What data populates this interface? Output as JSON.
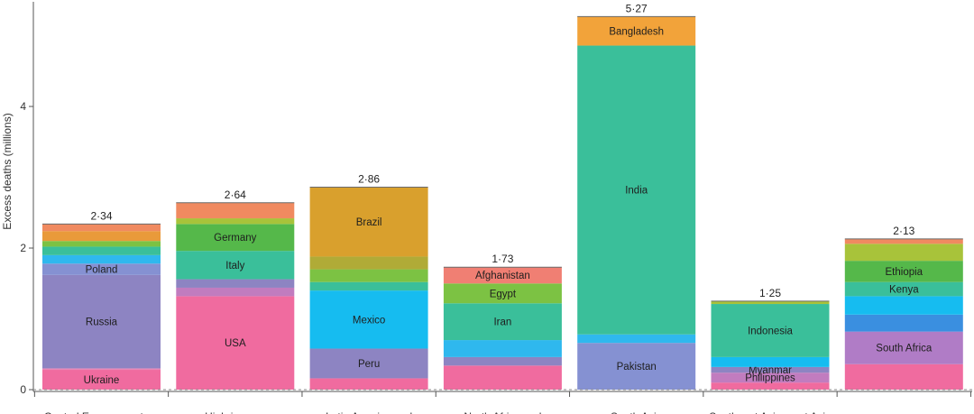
{
  "chart_data": {
    "type": "bar",
    "stacked": true,
    "ylabel": "Excess deaths (millions)",
    "ylim": [
      0,
      5.3
    ],
    "yticks": [
      {
        "v": 0,
        "label": "0"
      },
      {
        "v": 2,
        "label": "2"
      },
      {
        "v": 4,
        "label": "4"
      }
    ],
    "grid": false,
    "categories": [
      {
        "label": "Central Europe, eastern",
        "total": 2.34,
        "total_label": "2·34",
        "segments": [
          {
            "name": "Ukraine",
            "value": 0.28,
            "color": "#f06b9f",
            "label": "Ukraine"
          },
          {
            "name": "",
            "value": 0.02,
            "color": "#e88ab8",
            "label": ""
          },
          {
            "name": "Russia",
            "value": 1.32,
            "color": "#8d84c2",
            "label": "Russia"
          },
          {
            "name": "Poland",
            "value": 0.16,
            "color": "#8591d2",
            "label": "Poland"
          },
          {
            "name": "",
            "value": 0.12,
            "color": "#2fb8ee",
            "label": ""
          },
          {
            "name": "",
            "value": 0.12,
            "color": "#3abf9a",
            "label": ""
          },
          {
            "name": "",
            "value": 0.08,
            "color": "#7cc243",
            "label": ""
          },
          {
            "name": "",
            "value": 0.14,
            "color": "#e99a3a",
            "label": ""
          },
          {
            "name": "",
            "value": 0.1,
            "color": "#f08a60",
            "label": ""
          }
        ]
      },
      {
        "label": "High-income",
        "total": 2.64,
        "total_label": "2·64",
        "segments": [
          {
            "name": "USA",
            "value": 1.32,
            "color": "#f06b9f",
            "label": "USA"
          },
          {
            "name": "",
            "value": 0.12,
            "color": "#c17cbf",
            "label": ""
          },
          {
            "name": "",
            "value": 0.12,
            "color": "#8d84c2",
            "label": ""
          },
          {
            "name": "Italy",
            "value": 0.4,
            "color": "#3abf9a",
            "label": "Italy"
          },
          {
            "name": "Germany",
            "value": 0.38,
            "color": "#55b84a",
            "label": "Germany"
          },
          {
            "name": "",
            "value": 0.08,
            "color": "#a8c33a",
            "label": ""
          },
          {
            "name": "",
            "value": 0.22,
            "color": "#f08a60",
            "label": ""
          }
        ]
      },
      {
        "label": "Latin America and",
        "total": 2.86,
        "total_label": "2·86",
        "segments": [
          {
            "name": "",
            "value": 0.16,
            "color": "#f06b9f",
            "label": ""
          },
          {
            "name": "Peru",
            "value": 0.42,
            "color": "#8d84c2",
            "label": "Peru"
          },
          {
            "name": "Mexico",
            "value": 0.82,
            "color": "#16bcf0",
            "label": "Mexico"
          },
          {
            "name": "",
            "value": 0.12,
            "color": "#3abf9a",
            "label": ""
          },
          {
            "name": "",
            "value": 0.18,
            "color": "#7cc243",
            "label": ""
          },
          {
            "name": "",
            "value": 0.18,
            "color": "#b0ab37",
            "label": ""
          },
          {
            "name": "Brazil",
            "value": 0.98,
            "color": "#d9a02d",
            "label": "Brazil"
          }
        ]
      },
      {
        "label": "North Africa and",
        "total": 1.73,
        "total_label": "1·73",
        "segments": [
          {
            "name": "",
            "value": 0.34,
            "color": "#f06b9f",
            "label": ""
          },
          {
            "name": "",
            "value": 0.12,
            "color": "#8d84c2",
            "label": ""
          },
          {
            "name": "",
            "value": 0.24,
            "color": "#2fb8ee",
            "label": ""
          },
          {
            "name": "Iran",
            "value": 0.52,
            "color": "#3abf9a",
            "label": "Iran"
          },
          {
            "name": "Egypt",
            "value": 0.28,
            "color": "#7cc243",
            "label": "Egypt"
          },
          {
            "name": "Afghanistan",
            "value": 0.23,
            "color": "#f07f73",
            "label": "Afghanistan"
          }
        ]
      },
      {
        "label": "South Asia",
        "total": 5.27,
        "total_label": "5·27",
        "segments": [
          {
            "name": "Pakistan",
            "value": 0.66,
            "color": "#8591d2",
            "label": "Pakistan"
          },
          {
            "name": "",
            "value": 0.12,
            "color": "#2fb8ee",
            "label": ""
          },
          {
            "name": "India",
            "value": 4.08,
            "color": "#3abf9a",
            "label": "India"
          },
          {
            "name": "Bangladesh",
            "value": 0.41,
            "color": "#f2a33a",
            "label": "Bangladesh"
          }
        ]
      },
      {
        "label": "Southeast Asia, east Asia",
        "total": 1.25,
        "total_label": "1·25",
        "segments": [
          {
            "name": "",
            "value": 0.1,
            "color": "#f06b9f",
            "label": ""
          },
          {
            "name": "Philippines",
            "value": 0.14,
            "color": "#c17cbf",
            "label": "Philippines"
          },
          {
            "name": "Myanmar",
            "value": 0.08,
            "color": "#8d84c2",
            "label": "Myanmar"
          },
          {
            "name": "",
            "value": 0.14,
            "color": "#16bcf0",
            "label": ""
          },
          {
            "name": "Indonesia",
            "value": 0.75,
            "color": "#3abf9a",
            "label": "Indonesia"
          },
          {
            "name": "",
            "value": 0.04,
            "color": "#a8c33a",
            "label": ""
          }
        ]
      },
      {
        "label": "",
        "total": 2.13,
        "total_label": "2·13",
        "segments": [
          {
            "name": "",
            "value": 0.36,
            "color": "#f06b9f",
            "label": ""
          },
          {
            "name": "South Africa",
            "value": 0.46,
            "color": "#b07cc6",
            "label": "South Africa"
          },
          {
            "name": "",
            "value": 0.24,
            "color": "#3a8fe0",
            "label": ""
          },
          {
            "name": "",
            "value": 0.26,
            "color": "#16bcf0",
            "label": ""
          },
          {
            "name": "Kenya",
            "value": 0.2,
            "color": "#3abf9a",
            "label": "Kenya"
          },
          {
            "name": "Ethiopia",
            "value": 0.3,
            "color": "#55b84a",
            "label": "Ethiopia"
          },
          {
            "name": "",
            "value": 0.24,
            "color": "#a8c33a",
            "label": ""
          },
          {
            "name": "",
            "value": 0.07,
            "color": "#f08a60",
            "label": ""
          }
        ]
      }
    ]
  }
}
